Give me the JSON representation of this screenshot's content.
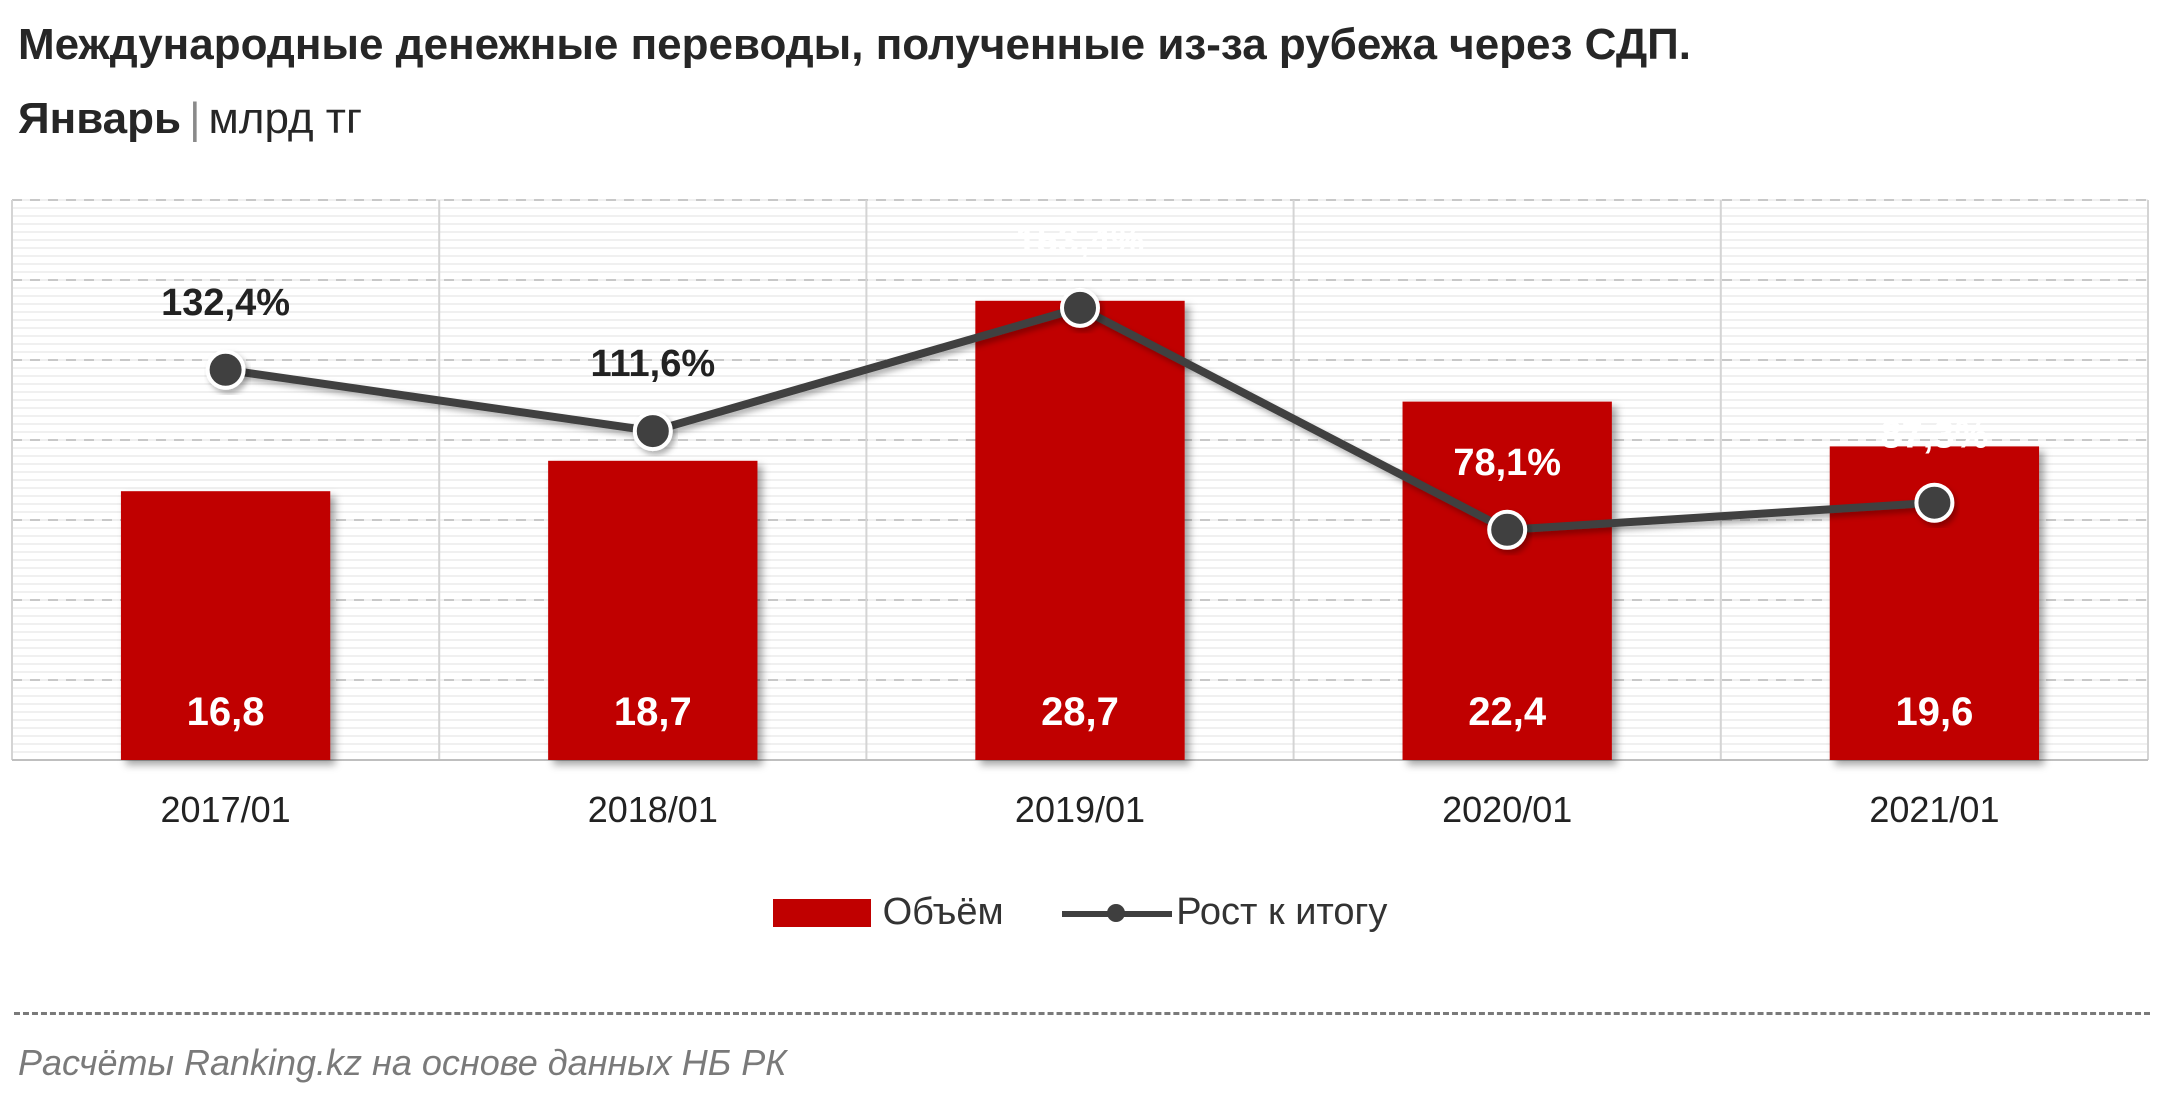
{
  "header": {
    "title": "Международные денежные переводы, полученные из-за рубежа через СДП.",
    "subtitle_bold": "Январь",
    "subtitle_sep": "|",
    "subtitle_unit": "млрд тг"
  },
  "chart_data": {
    "type": "bar",
    "categories": [
      "2017/01",
      "2018/01",
      "2019/01",
      "2020/01",
      "2021/01"
    ],
    "series": [
      {
        "name": "Объём",
        "type": "bar",
        "values": [
          16.8,
          18.7,
          28.7,
          22.4,
          19.6
        ],
        "labels": [
          "16,8",
          "18,7",
          "28,7",
          "22,4",
          "19,6"
        ],
        "color": "#c00000"
      },
      {
        "name": "Рост к итогу",
        "type": "line",
        "values": [
          132.4,
          111.6,
          153.4,
          78.1,
          87.3
        ],
        "labels": [
          "132,4%",
          "111,6%",
          "153,4%",
          "78,1%",
          "87,3%"
        ],
        "color": "#404040"
      }
    ],
    "ylim_bar": [
      0,
      35
    ],
    "ylim_line": [
      0,
      190
    ],
    "grid": true,
    "legend_position": "bottom"
  },
  "legend": {
    "bar_label": "Объём",
    "line_label": "Рост к итогу"
  },
  "footer": {
    "source": "Расчёты Ranking.kz на основе данных  НБ РК"
  }
}
